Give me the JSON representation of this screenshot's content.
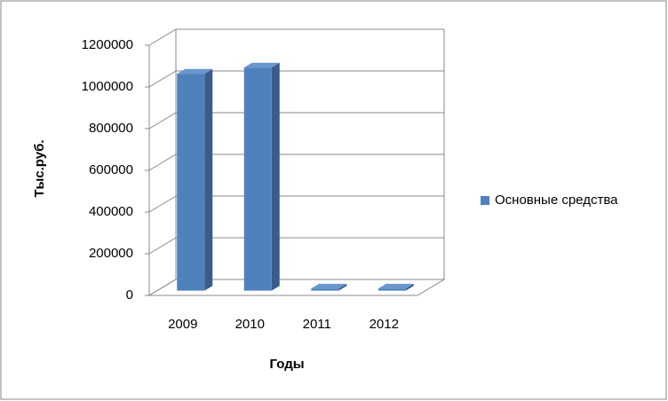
{
  "chart_data": {
    "type": "bar3d",
    "x_title": "Годы",
    "y_title": "Тыс.руб.",
    "categories": [
      "2009",
      "2010",
      "2011",
      "2012"
    ],
    "series": [
      {
        "name": "Основные средства",
        "color": "#4f81bd",
        "values": [
          1040000,
          1070000,
          10000,
          10000
        ]
      }
    ],
    "ylim": [
      0,
      1200000
    ],
    "yticks": [
      0,
      200000,
      400000,
      600000,
      800000,
      1000000,
      1200000
    ],
    "grid": true,
    "legend": "right"
  }
}
